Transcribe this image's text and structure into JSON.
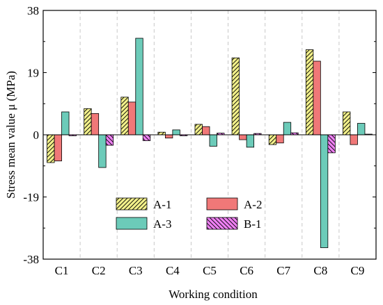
{
  "chart_data": {
    "type": "bar",
    "xlabel": "Working condition",
    "ylabel": "Stress mean value μ (MPa)",
    "ylim": [
      -38,
      38
    ],
    "yticks": [
      -38,
      -19,
      0,
      19,
      38
    ],
    "categories": [
      "C1",
      "C2",
      "C3",
      "C4",
      "C5",
      "C6",
      "C7",
      "C8",
      "C9"
    ],
    "series": [
      {
        "name": "A-1",
        "color": "#f2f08a",
        "pattern": "hatch-forward",
        "values": [
          -8.5,
          8.0,
          11.5,
          0.8,
          3.2,
          23.5,
          -3.0,
          26.0,
          7.0
        ]
      },
      {
        "name": "A-2",
        "color": "#f07878",
        "pattern": "solid",
        "values": [
          -8.0,
          6.5,
          10.0,
          -1.0,
          2.5,
          -1.5,
          -2.5,
          22.5,
          -3.0
        ]
      },
      {
        "name": "A-3",
        "color": "#6ccbb9",
        "pattern": "solid",
        "values": [
          7.0,
          -10.0,
          29.5,
          1.5,
          -3.5,
          -3.8,
          3.8,
          -34.5,
          3.5
        ]
      },
      {
        "name": "B-1",
        "color": "#ee7ff2",
        "pattern": "hatch-backward",
        "values": [
          -0.3,
          -3.2,
          -1.8,
          -0.3,
          0.5,
          0.4,
          0.6,
          -5.5,
          0.2
        ]
      }
    ],
    "grid": "vertical dashed separators between categories",
    "legend_position": "bottom-left"
  }
}
